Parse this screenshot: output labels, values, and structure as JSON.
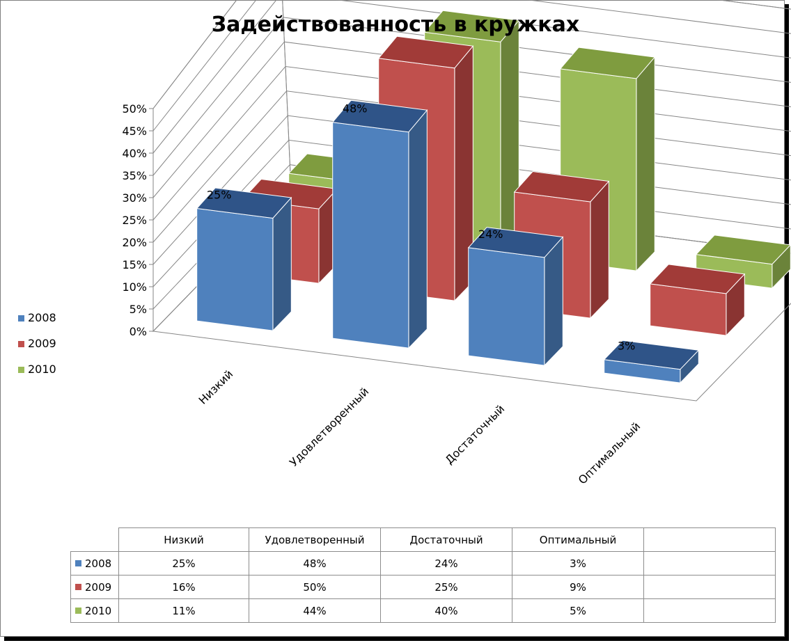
{
  "chart_data": {
    "type": "bar",
    "title": "Задействованность в кружках",
    "categories": [
      "Низкий",
      "Удовлетворенный",
      "Достаточный",
      "Оптимальный"
    ],
    "series": [
      {
        "name": "2008",
        "values": [
          0.25,
          0.48,
          0.24,
          0.03
        ],
        "labels": [
          "25%",
          "48%",
          "24%",
          "3%"
        ],
        "color": "#4f81bd",
        "side_color": "#365a86",
        "top_color": "#2f5488"
      },
      {
        "name": "2009",
        "values": [
          0.16,
          0.5,
          0.25,
          0.09
        ],
        "labels": [
          "16%",
          "50%",
          "25%",
          "9%"
        ],
        "color": "#c0504d",
        "side_color": "#8a3432",
        "top_color": "#a13b38"
      },
      {
        "name": "2010",
        "values": [
          0.11,
          0.44,
          0.4,
          0.05
        ],
        "labels": [
          "11%",
          "44%",
          "40%",
          "5%"
        ],
        "color": "#9bbb59",
        "side_color": "#6b833a",
        "top_color": "#7f9c3f"
      }
    ],
    "ylim": [
      0,
      0.5
    ],
    "yticks": [
      0,
      0.05,
      0.1,
      0.15,
      0.2,
      0.25,
      0.3,
      0.35,
      0.4,
      0.45,
      0.5
    ],
    "ytick_labels": [
      "0%",
      "5%",
      "10%",
      "15%",
      "20%",
      "25%",
      "30%",
      "35%",
      "40%",
      "45%",
      "50%"
    ],
    "data_labels_series": "2008",
    "legend_position": "left",
    "grid": true,
    "data_table": true
  }
}
